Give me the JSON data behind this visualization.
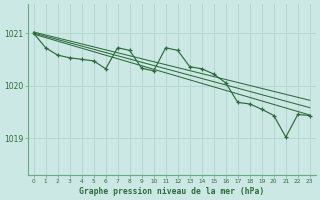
{
  "title": "Graphe pression niveau de la mer (hPa)",
  "bg_color": "#cce8e4",
  "grid_color": "#b0d4cc",
  "line_color": "#2d6b3c",
  "border_color": "#6aaa88",
  "x_ticks": [
    0,
    1,
    2,
    3,
    4,
    5,
    6,
    7,
    8,
    9,
    10,
    11,
    12,
    13,
    14,
    15,
    16,
    17,
    18,
    19,
    20,
    21,
    22,
    23
  ],
  "y_ticks": [
    1019,
    1020,
    1021
  ],
  "ylim": [
    1018.3,
    1021.55
  ],
  "xlim": [
    -0.5,
    23.5
  ],
  "main_x": [
    0,
    1,
    2,
    3,
    4,
    5,
    6,
    7,
    8,
    9,
    10,
    11,
    12,
    13,
    14,
    15,
    16,
    17,
    18,
    19,
    20,
    21,
    22,
    23
  ],
  "main_y": [
    1021.0,
    1020.72,
    1020.58,
    1020.53,
    1020.5,
    1020.47,
    1020.32,
    1020.72,
    1020.67,
    1020.33,
    1020.28,
    1020.72,
    1020.67,
    1020.36,
    1020.32,
    1020.22,
    1020.05,
    1019.68,
    1019.65,
    1019.55,
    1019.43,
    1019.02,
    1019.45,
    1019.43
  ],
  "trend_lines": [
    [
      1021.02,
      1019.72
    ],
    [
      1021.0,
      1019.58
    ],
    [
      1020.98,
      1019.44
    ]
  ]
}
